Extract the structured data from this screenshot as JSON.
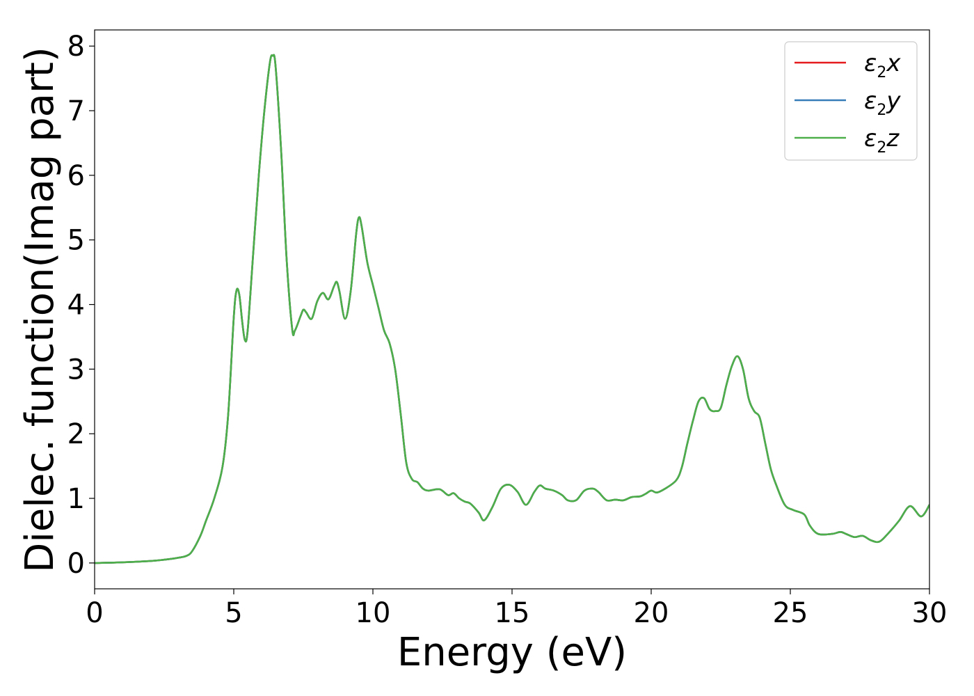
{
  "chart_data": {
    "type": "line",
    "title": "",
    "xlabel": "Energy (eV)",
    "ylabel": "Dielec. function(Imag part)",
    "xlim": [
      0,
      30
    ],
    "ylim": [
      -0.4,
      8.25
    ],
    "xticks": [
      0,
      5,
      10,
      15,
      20,
      25,
      30
    ],
    "yticks": [
      0,
      1,
      2,
      3,
      4,
      5,
      6,
      7,
      8
    ],
    "grid": false,
    "legend_position": "top-right",
    "legend": [
      {
        "sym": "ε",
        "sub": "2",
        "var": "x",
        "color": "#e41a1c"
      },
      {
        "sym": "ε",
        "sub": "2",
        "var": "y",
        "color": "#377eb8"
      },
      {
        "sym": "ε",
        "sub": "2",
        "var": "z",
        "color": "#4daf4a"
      }
    ],
    "x": [
      0,
      1,
      2,
      2.5,
      3,
      3.3,
      3.5,
      3.8,
      4.0,
      4.3,
      4.6,
      4.8,
      5.0,
      5.1,
      5.2,
      5.3,
      5.4,
      5.5,
      5.7,
      5.9,
      6.1,
      6.3,
      6.4,
      6.5,
      6.7,
      6.9,
      7.1,
      7.2,
      7.4,
      7.5,
      7.6,
      7.8,
      8.0,
      8.2,
      8.4,
      8.6,
      8.7,
      8.8,
      9.0,
      9.2,
      9.4,
      9.5,
      9.6,
      9.8,
      10.0,
      10.2,
      10.4,
      10.6,
      10.8,
      11.0,
      11.2,
      11.4,
      11.6,
      11.8,
      12.0,
      12.4,
      12.7,
      12.9,
      13.1,
      13.3,
      13.5,
      13.8,
      14.0,
      14.3,
      14.6,
      14.9,
      15.2,
      15.5,
      15.8,
      16.0,
      16.2,
      16.5,
      16.8,
      17.0,
      17.3,
      17.6,
      17.9,
      18.1,
      18.4,
      18.7,
      19.0,
      19.3,
      19.6,
      19.8,
      20.0,
      20.2,
      20.5,
      20.9,
      21.1,
      21.3,
      21.5,
      21.7,
      21.9,
      22.1,
      22.3,
      22.5,
      22.7,
      22.9,
      23.1,
      23.3,
      23.5,
      23.7,
      23.9,
      24.1,
      24.3,
      24.5,
      24.8,
      25.1,
      25.5,
      25.7,
      26.0,
      26.5,
      26.8,
      27.0,
      27.3,
      27.6,
      27.9,
      28.2,
      28.5,
      28.9,
      29.3,
      29.7,
      30.0
    ],
    "series": [
      {
        "name": "ε2x",
        "color": "#e41a1c",
        "values": [
          0.0,
          0.01,
          0.03,
          0.05,
          0.08,
          0.11,
          0.18,
          0.42,
          0.65,
          1.0,
          1.5,
          2.3,
          3.8,
          4.22,
          4.15,
          3.75,
          3.45,
          3.6,
          4.8,
          6.0,
          7.0,
          7.75,
          7.85,
          7.7,
          6.4,
          4.7,
          3.62,
          3.6,
          3.82,
          3.92,
          3.88,
          3.78,
          4.05,
          4.18,
          4.08,
          4.28,
          4.35,
          4.2,
          3.78,
          4.2,
          5.1,
          5.35,
          5.2,
          4.65,
          4.3,
          3.95,
          3.6,
          3.4,
          3.0,
          2.3,
          1.55,
          1.3,
          1.25,
          1.15,
          1.12,
          1.14,
          1.05,
          1.08,
          1.0,
          0.95,
          0.92,
          0.78,
          0.66,
          0.87,
          1.15,
          1.21,
          1.1,
          0.9,
          1.1,
          1.2,
          1.15,
          1.12,
          1.05,
          0.97,
          0.97,
          1.12,
          1.15,
          1.1,
          0.97,
          0.98,
          0.97,
          1.02,
          1.03,
          1.07,
          1.12,
          1.09,
          1.15,
          1.28,
          1.48,
          1.85,
          2.2,
          2.5,
          2.55,
          2.38,
          2.35,
          2.4,
          2.75,
          3.05,
          3.2,
          3.0,
          2.55,
          2.35,
          2.25,
          1.85,
          1.45,
          1.2,
          0.9,
          0.82,
          0.75,
          0.58,
          0.45,
          0.45,
          0.48,
          0.45,
          0.4,
          0.42,
          0.35,
          0.33,
          0.45,
          0.65,
          0.88,
          0.72,
          0.9
        ]
      },
      {
        "name": "ε2y",
        "color": "#377eb8",
        "values": [
          0.0,
          0.01,
          0.03,
          0.05,
          0.08,
          0.11,
          0.18,
          0.42,
          0.65,
          1.0,
          1.5,
          2.3,
          3.8,
          4.22,
          4.15,
          3.75,
          3.45,
          3.6,
          4.8,
          6.0,
          7.0,
          7.75,
          7.85,
          7.7,
          6.4,
          4.7,
          3.62,
          3.6,
          3.82,
          3.92,
          3.88,
          3.78,
          4.05,
          4.18,
          4.08,
          4.28,
          4.35,
          4.2,
          3.78,
          4.2,
          5.1,
          5.35,
          5.2,
          4.65,
          4.3,
          3.95,
          3.6,
          3.4,
          3.0,
          2.3,
          1.55,
          1.3,
          1.25,
          1.15,
          1.12,
          1.14,
          1.05,
          1.08,
          1.0,
          0.95,
          0.92,
          0.78,
          0.66,
          0.87,
          1.15,
          1.21,
          1.1,
          0.9,
          1.1,
          1.2,
          1.15,
          1.12,
          1.05,
          0.97,
          0.97,
          1.12,
          1.15,
          1.1,
          0.97,
          0.98,
          0.97,
          1.02,
          1.03,
          1.07,
          1.12,
          1.09,
          1.15,
          1.28,
          1.48,
          1.85,
          2.2,
          2.5,
          2.55,
          2.38,
          2.35,
          2.4,
          2.75,
          3.05,
          3.2,
          3.0,
          2.55,
          2.35,
          2.25,
          1.85,
          1.45,
          1.2,
          0.9,
          0.82,
          0.75,
          0.58,
          0.45,
          0.45,
          0.48,
          0.45,
          0.4,
          0.42,
          0.35,
          0.33,
          0.45,
          0.65,
          0.88,
          0.72,
          0.9
        ]
      },
      {
        "name": "ε2z",
        "color": "#4daf4a",
        "values": [
          0.0,
          0.01,
          0.03,
          0.05,
          0.08,
          0.11,
          0.18,
          0.42,
          0.65,
          1.0,
          1.5,
          2.3,
          3.8,
          4.22,
          4.15,
          3.75,
          3.45,
          3.6,
          4.8,
          6.0,
          7.0,
          7.75,
          7.85,
          7.7,
          6.4,
          4.7,
          3.62,
          3.6,
          3.82,
          3.92,
          3.88,
          3.78,
          4.05,
          4.18,
          4.08,
          4.28,
          4.35,
          4.2,
          3.78,
          4.2,
          5.1,
          5.35,
          5.2,
          4.65,
          4.3,
          3.95,
          3.6,
          3.4,
          3.0,
          2.3,
          1.55,
          1.3,
          1.25,
          1.15,
          1.12,
          1.14,
          1.05,
          1.08,
          1.0,
          0.95,
          0.92,
          0.78,
          0.66,
          0.87,
          1.15,
          1.21,
          1.1,
          0.9,
          1.1,
          1.2,
          1.15,
          1.12,
          1.05,
          0.97,
          0.97,
          1.12,
          1.15,
          1.1,
          0.97,
          0.98,
          0.97,
          1.02,
          1.03,
          1.07,
          1.12,
          1.09,
          1.15,
          1.28,
          1.48,
          1.85,
          2.2,
          2.5,
          2.55,
          2.38,
          2.35,
          2.4,
          2.75,
          3.05,
          3.2,
          3.0,
          2.55,
          2.35,
          2.25,
          1.85,
          1.45,
          1.2,
          0.9,
          0.82,
          0.75,
          0.58,
          0.45,
          0.45,
          0.48,
          0.45,
          0.4,
          0.42,
          0.35,
          0.33,
          0.45,
          0.65,
          0.88,
          0.72,
          0.9
        ]
      }
    ]
  }
}
